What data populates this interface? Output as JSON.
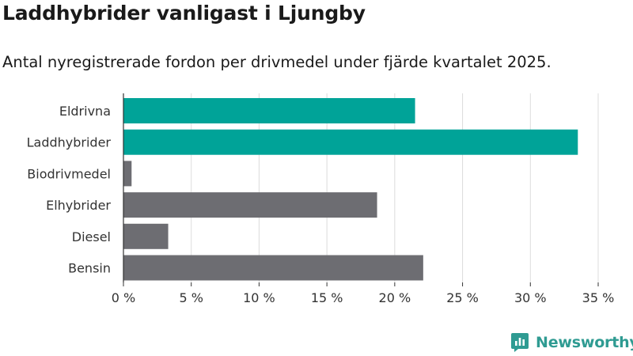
{
  "header": {
    "title": "Laddhybrider vanligast i Ljungby",
    "subtitle": "Antal nyregistrerade fordon per drivmedel under fjärde kvartalet 2025."
  },
  "chart_data": {
    "type": "bar",
    "orientation": "horizontal",
    "categories": [
      "Eldrivna",
      "Laddhybrider",
      "Biodrivmedel",
      "Elhybrider",
      "Diesel",
      "Bensin"
    ],
    "values": [
      21.5,
      33.5,
      0.6,
      18.7,
      3.3,
      22.1
    ],
    "highlight": [
      true,
      true,
      false,
      false,
      false,
      false
    ],
    "xlim": [
      0,
      35
    ],
    "xticks": [
      0,
      5,
      10,
      15,
      20,
      25,
      30,
      35
    ],
    "tick_suffix": " %",
    "grid": true,
    "colors": {
      "highlight": "#00a398",
      "default": "#6d6d72",
      "grid": "#dcdcdc",
      "axis": "#333333"
    }
  },
  "branding": {
    "name": "Newsworthy",
    "icon": "newsworthy-logo-icon",
    "color": "#2f9b92"
  }
}
